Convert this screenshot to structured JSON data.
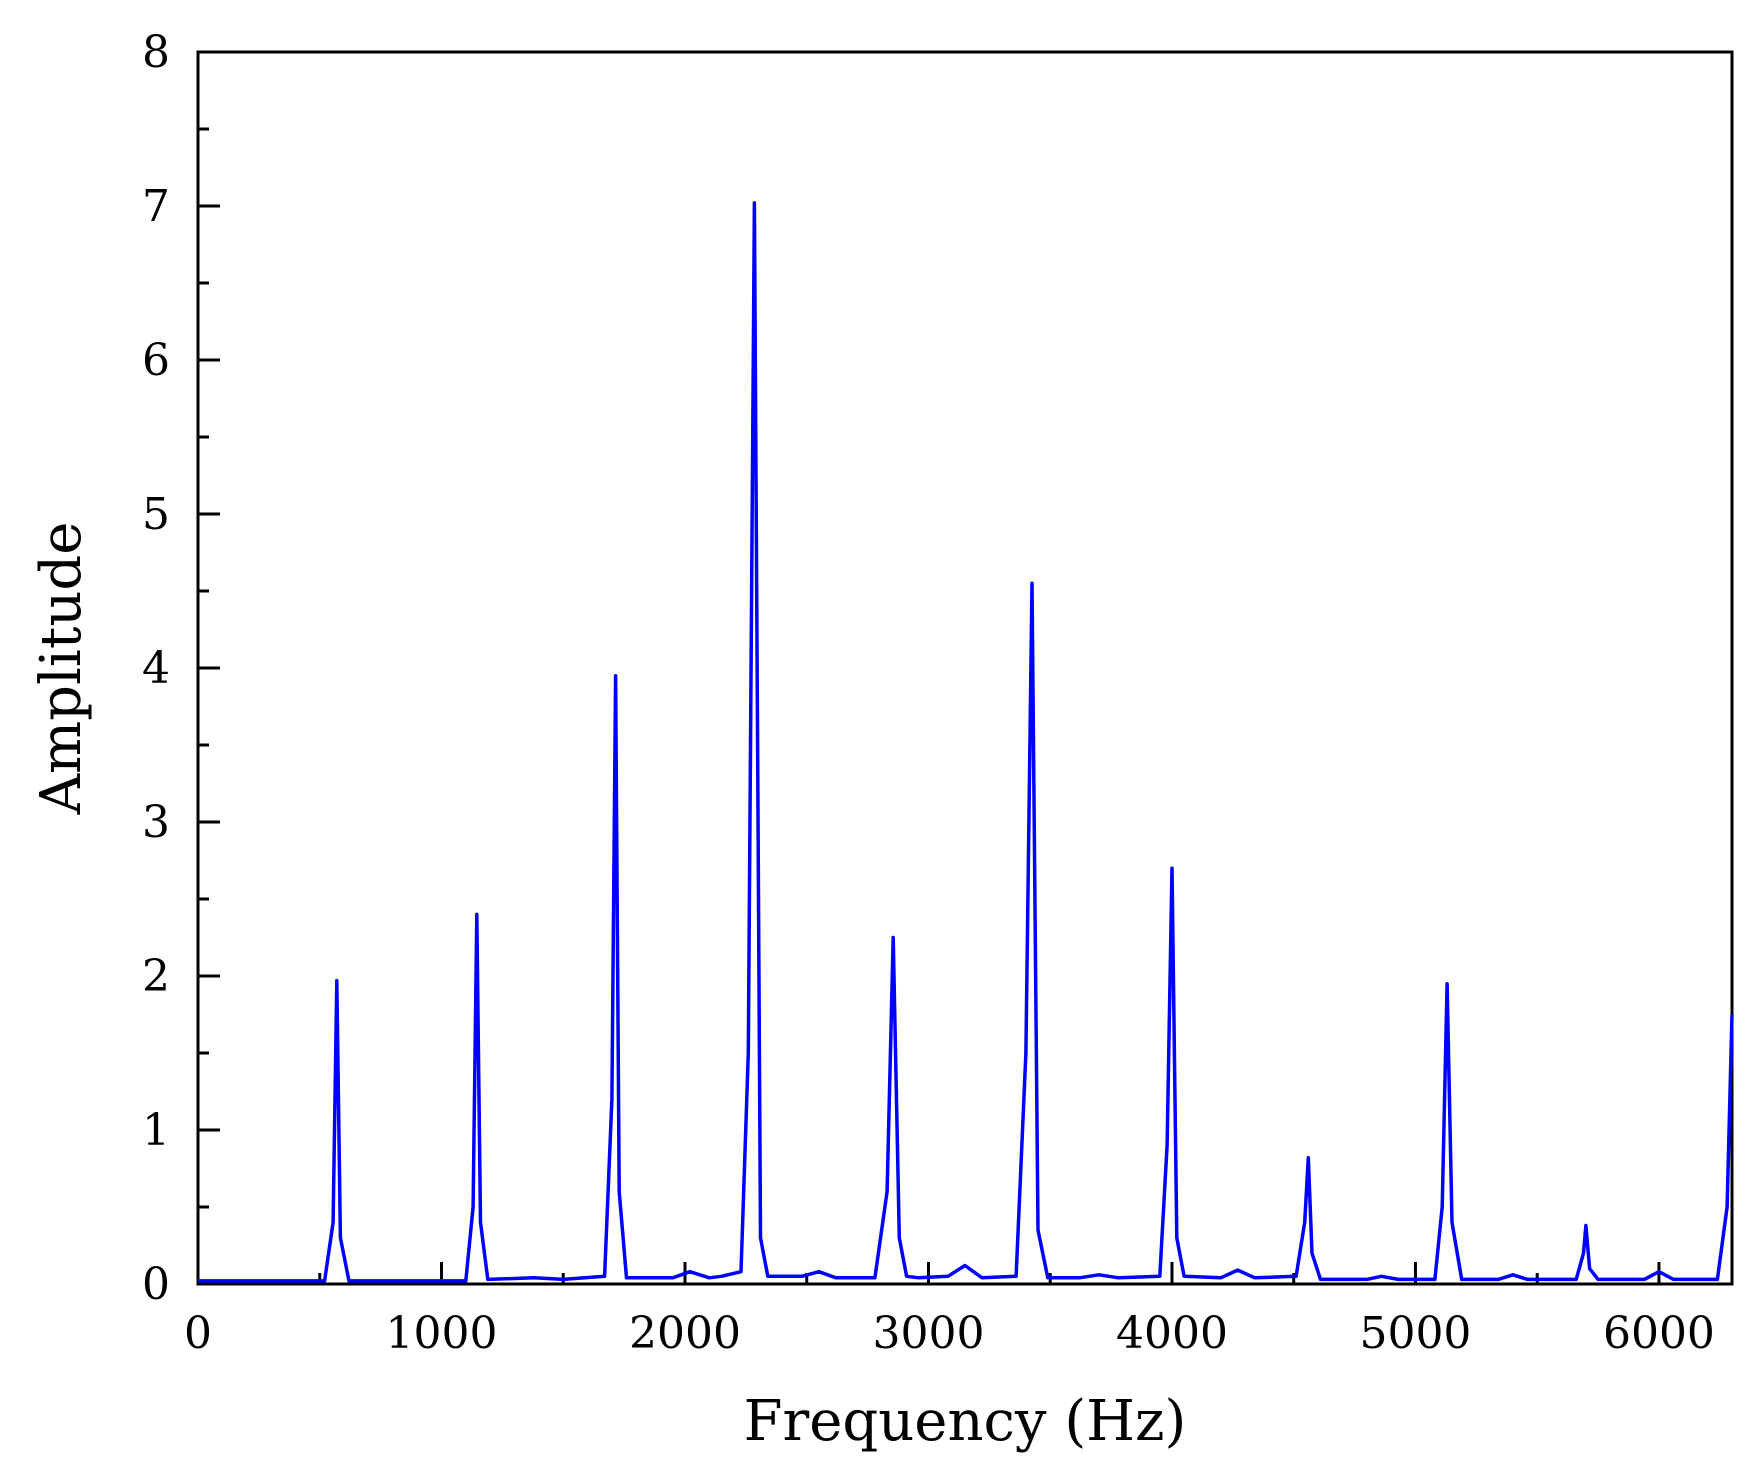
{
  "chart_data": {
    "type": "line",
    "title": "",
    "xlabel": "Frequency (Hz)",
    "ylabel": "Amplitude",
    "xlim": [
      0,
      6300
    ],
    "ylim": [
      0,
      8
    ],
    "x_ticks": [
      0,
      1000,
      2000,
      3000,
      4000,
      5000,
      6000
    ],
    "y_ticks": [
      0,
      1,
      2,
      3,
      4,
      5,
      6,
      7,
      8
    ],
    "x_tick_labels": [
      "0",
      "1000",
      "2000",
      "3000",
      "4000",
      "5000",
      "6000"
    ],
    "y_tick_labels": [
      "0",
      "1",
      "2",
      "3",
      "4",
      "5",
      "6",
      "7",
      "8"
    ],
    "grid": false,
    "legend": "none",
    "line_color": "#0000ff",
    "series": [
      {
        "x": [
          0,
          520,
          555,
          570,
          585,
          620,
          1100,
          1130,
          1145,
          1160,
          1190,
          1380,
          1500,
          1670,
          1700,
          1715,
          1730,
          1760,
          1950,
          2020,
          2100,
          2150,
          2230,
          2260,
          2285,
          2310,
          2340,
          2480,
          2550,
          2620,
          2780,
          2830,
          2855,
          2880,
          2910,
          2960,
          3080,
          3150,
          3220,
          3360,
          3400,
          3425,
          3450,
          3490,
          3620,
          3700,
          3780,
          3950,
          3980,
          4000,
          4020,
          4050,
          4200,
          4270,
          4340,
          4510,
          4545,
          4560,
          4575,
          4610,
          4800,
          4860,
          4930,
          5080,
          5110,
          5130,
          5150,
          5190,
          5340,
          5400,
          5460,
          5660,
          5690,
          5700,
          5715,
          5750,
          5940,
          6000,
          6060,
          6240,
          6280,
          6300
        ],
        "y": [
          0.02,
          0.02,
          0.4,
          1.97,
          0.3,
          0.02,
          0.02,
          0.5,
          2.4,
          0.4,
          0.03,
          0.04,
          0.03,
          0.05,
          1.2,
          3.95,
          0.6,
          0.04,
          0.04,
          0.08,
          0.04,
          0.05,
          0.08,
          1.5,
          7.02,
          0.3,
          0.05,
          0.05,
          0.08,
          0.04,
          0.04,
          0.6,
          2.25,
          0.3,
          0.05,
          0.04,
          0.05,
          0.12,
          0.04,
          0.05,
          1.5,
          4.55,
          0.35,
          0.04,
          0.04,
          0.06,
          0.04,
          0.05,
          0.9,
          2.7,
          0.3,
          0.05,
          0.04,
          0.09,
          0.04,
          0.05,
          0.4,
          0.82,
          0.2,
          0.03,
          0.03,
          0.05,
          0.03,
          0.03,
          0.5,
          1.95,
          0.4,
          0.03,
          0.03,
          0.06,
          0.03,
          0.03,
          0.2,
          0.38,
          0.1,
          0.03,
          0.03,
          0.08,
          0.03,
          0.03,
          0.5,
          1.75
        ]
      }
    ]
  }
}
